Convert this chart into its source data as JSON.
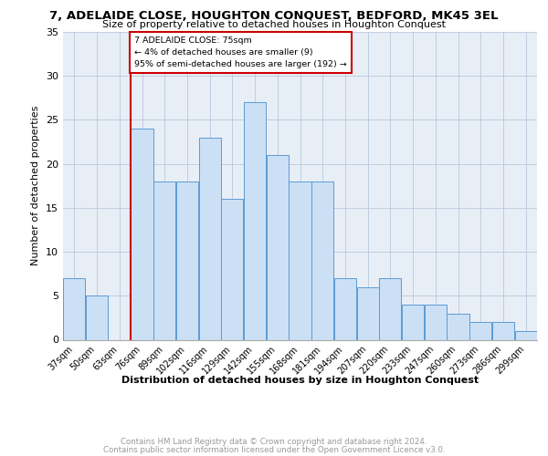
{
  "title1": "7, ADELAIDE CLOSE, HOUGHTON CONQUEST, BEDFORD, MK45 3EL",
  "title2": "Size of property relative to detached houses in Houghton Conquest",
  "xlabel": "Distribution of detached houses by size in Houghton Conquest",
  "ylabel": "Number of detached properties",
  "bin_labels": [
    "37sqm",
    "50sqm",
    "63sqm",
    "76sqm",
    "89sqm",
    "102sqm",
    "116sqm",
    "129sqm",
    "142sqm",
    "155sqm",
    "168sqm",
    "181sqm",
    "194sqm",
    "207sqm",
    "220sqm",
    "233sqm",
    "247sqm",
    "260sqm",
    "273sqm",
    "286sqm",
    "299sqm"
  ],
  "bar_heights": [
    7,
    5,
    0,
    24,
    18,
    18,
    23,
    16,
    27,
    21,
    18,
    18,
    7,
    6,
    7,
    4,
    4,
    3,
    2,
    2,
    1
  ],
  "bar_color": "#cce0f5",
  "bar_edge_color": "#5b9bd5",
  "annotation_title": "7 ADELAIDE CLOSE: 75sqm",
  "annotation_line1": "← 4% of detached houses are smaller (9)",
  "annotation_line2": "95% of semi-detached houses are larger (192) →",
  "annotation_box_color": "#ffffff",
  "annotation_box_edge_color": "#cc0000",
  "red_line_color": "#cc0000",
  "footer1": "Contains HM Land Registry data © Crown copyright and database right 2024.",
  "footer2": "Contains public sector information licensed under the Open Government Licence v3.0.",
  "plot_background": "#e8eef6",
  "ylim": [
    0,
    35
  ],
  "yticks": [
    0,
    5,
    10,
    15,
    20,
    25,
    30,
    35
  ]
}
